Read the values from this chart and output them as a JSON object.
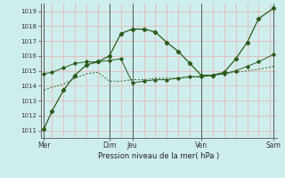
{
  "xlabel": "Pression niveau de la mer( hPa )",
  "bg_color": "#ceeeed",
  "grid_color_h": "#e8b8b8",
  "grid_color_v": "#e8b8b8",
  "line_color": "#2d5a1b",
  "ylim": [
    1010.5,
    1019.5
  ],
  "yticks": [
    1011,
    1012,
    1013,
    1014,
    1015,
    1016,
    1017,
    1018,
    1019
  ],
  "xlim": [
    0,
    10.3
  ],
  "xtick_pos": [
    0.15,
    3.0,
    4.0,
    7.0,
    10.15
  ],
  "xtick_lab": [
    "Mer",
    "Dim",
    "Jeu",
    "Ven",
    "Sam"
  ],
  "vline_pos": [
    0.15,
    3.0,
    4.0,
    7.0,
    10.15
  ],
  "line1_x": [
    0.15,
    0.5,
    1.0,
    1.5,
    2.0,
    2.5,
    3.0,
    3.5,
    4.0,
    4.5,
    5.0,
    5.5,
    6.0,
    6.5,
    7.0,
    7.5,
    8.0,
    8.5,
    9.0,
    9.5,
    10.15
  ],
  "line1_y": [
    1011.1,
    1012.3,
    1013.7,
    1014.7,
    1015.4,
    1015.6,
    1016.0,
    1017.5,
    1017.8,
    1017.8,
    1017.6,
    1016.9,
    1016.3,
    1015.5,
    1014.7,
    1014.7,
    1014.9,
    1015.8,
    1016.9,
    1018.5,
    1019.2
  ],
  "line2_x": [
    0.15,
    0.5,
    1.0,
    1.5,
    2.0,
    2.5,
    3.0,
    3.5,
    4.0,
    4.5,
    5.0,
    5.5,
    6.0,
    6.5,
    7.0,
    7.5,
    8.0,
    8.5,
    9.0,
    9.5,
    10.15
  ],
  "line2_y": [
    1014.8,
    1014.9,
    1015.2,
    1015.5,
    1015.6,
    1015.6,
    1015.7,
    1015.8,
    1014.2,
    1014.3,
    1014.4,
    1014.4,
    1014.5,
    1014.6,
    1014.6,
    1014.7,
    1014.8,
    1015.0,
    1015.3,
    1015.6,
    1016.1
  ],
  "line3_x": [
    0.15,
    0.5,
    1.0,
    1.5,
    2.0,
    2.5,
    3.0,
    3.5,
    4.0,
    4.5,
    5.0,
    5.5,
    6.0,
    6.5,
    7.0,
    7.5,
    8.0,
    8.5,
    9.0,
    9.5,
    10.15
  ],
  "line3_y": [
    1013.7,
    1013.9,
    1014.1,
    1014.5,
    1014.8,
    1014.9,
    1014.3,
    1014.3,
    1014.4,
    1014.4,
    1014.5,
    1014.5,
    1014.5,
    1014.6,
    1014.6,
    1014.7,
    1014.8,
    1014.9,
    1015.0,
    1015.1,
    1015.3
  ]
}
